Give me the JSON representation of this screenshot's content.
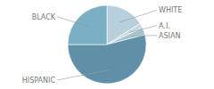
{
  "chart_data": {
    "type": "pie",
    "categories": [
      "WHITE",
      "A.I.",
      "ASIAN",
      "HISPANIC",
      "BLACK"
    ],
    "values": [
      16,
      2,
      3,
      54,
      25
    ],
    "colors": [
      "#b8d0dc",
      "#c5d9e3",
      "#a8c3d0",
      "#6090a8",
      "#7aafc4"
    ]
  }
}
